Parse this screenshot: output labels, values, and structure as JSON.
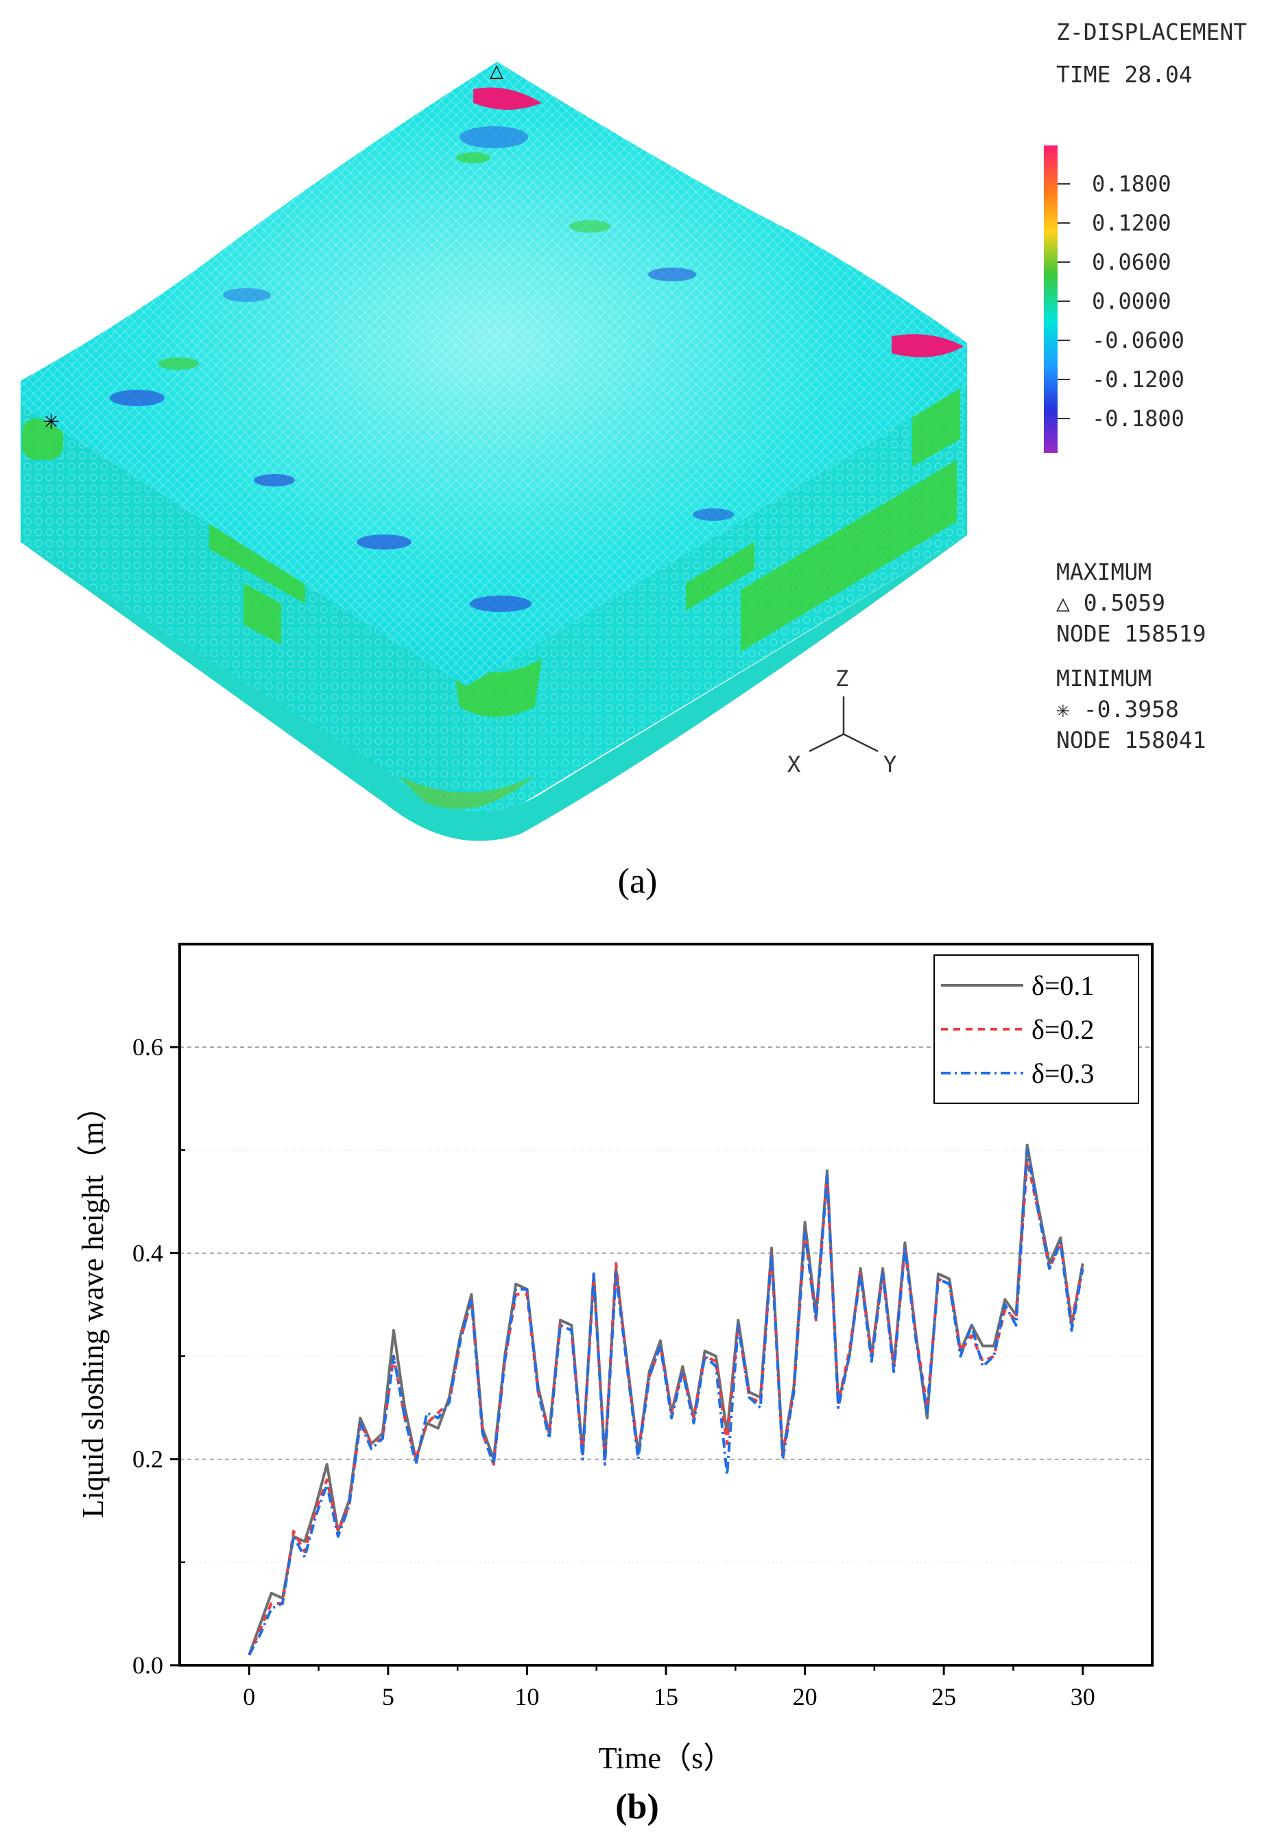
{
  "panel_a": {
    "label": "(a)",
    "title": "Z-DISPLACEMENT",
    "time_label": "TIME 28.04",
    "colorbar": {
      "ticks": [
        "0.1800",
        "0.1200",
        "0.0600",
        "0.0000",
        "-0.0600",
        "-0.1200",
        "-0.1800"
      ],
      "colors": [
        "#ff1e6e",
        "#ff7a1a",
        "#ffd21a",
        "#3cc83c",
        "#00e6dc",
        "#1e9bff",
        "#2832dc",
        "#9b28c8"
      ]
    },
    "maximum_label": "MAXIMUM",
    "maximum_value": "△ 0.5059",
    "maximum_node": "NODE 158519",
    "minimum_label": "MINIMUM",
    "minimum_value": "✳ -0.3958",
    "minimum_node": "NODE 158041",
    "axes": {
      "z": "Z",
      "x": "X",
      "y": "Y"
    },
    "colors": {
      "fluid_top": "#0ee6e6",
      "fluid_side": "#18dcd2",
      "baffle": "#3cd23c",
      "high": "#e61e78",
      "low": "#2850dc"
    }
  },
  "chart_data": {
    "type": "line",
    "label": "(b)",
    "xlabel": "Time（s）",
    "ylabel": "Liquid sloshing wave height（m）",
    "xlim": [
      -2.5,
      32.5
    ],
    "ylim": [
      0,
      0.7
    ],
    "xticks": [
      0,
      5,
      10,
      15,
      20,
      25,
      30
    ],
    "yticks": [
      0.0,
      0.2,
      0.4,
      0.6
    ],
    "ytick_labels": [
      "0.0",
      "0.2",
      "0.4",
      "0.6"
    ],
    "grid": "horizontal dashed",
    "legend_position": "top-right",
    "x": [
      0,
      0.4,
      0.8,
      1.2,
      1.6,
      2,
      2.4,
      2.8,
      3.2,
      3.6,
      4,
      4.4,
      4.8,
      5.2,
      5.6,
      6,
      6.4,
      6.8,
      7.2,
      7.6,
      8,
      8.4,
      8.8,
      9.2,
      9.6,
      10,
      10.4,
      10.8,
      11.2,
      11.6,
      12,
      12.4,
      12.8,
      13.2,
      13.6,
      14,
      14.4,
      14.8,
      15.2,
      15.6,
      16,
      16.4,
      16.8,
      17.2,
      17.6,
      18,
      18.4,
      18.8,
      19.2,
      19.6,
      20,
      20.4,
      20.8,
      21.2,
      21.6,
      22,
      22.4,
      22.8,
      23.2,
      23.6,
      24,
      24.4,
      24.8,
      25.2,
      25.6,
      26,
      26.4,
      26.8,
      27.2,
      27.6,
      28,
      28.4,
      28.8,
      29.2,
      29.6,
      30
    ],
    "series": [
      {
        "name": "δ=0.1",
        "color": "#6e6e6e",
        "dash": "solid",
        "values": [
          0.01,
          0.04,
          0.07,
          0.065,
          0.125,
          0.12,
          0.155,
          0.195,
          0.13,
          0.16,
          0.24,
          0.215,
          0.225,
          0.325,
          0.25,
          0.2,
          0.235,
          0.23,
          0.26,
          0.32,
          0.36,
          0.23,
          0.2,
          0.3,
          0.37,
          0.365,
          0.27,
          0.225,
          0.335,
          0.33,
          0.205,
          0.38,
          0.2,
          0.385,
          0.295,
          0.205,
          0.285,
          0.315,
          0.245,
          0.29,
          0.24,
          0.305,
          0.3,
          0.225,
          0.335,
          0.265,
          0.26,
          0.405,
          0.205,
          0.27,
          0.43,
          0.34,
          0.48,
          0.255,
          0.3,
          0.385,
          0.3,
          0.385,
          0.29,
          0.41,
          0.32,
          0.24,
          0.38,
          0.375,
          0.305,
          0.33,
          0.31,
          0.31,
          0.355,
          0.34,
          0.505,
          0.445,
          0.39,
          0.415,
          0.33,
          0.39
        ]
      },
      {
        "name": "δ=0.2",
        "color": "#f03c3c",
        "dash": "10,8",
        "values": [
          0.01,
          0.035,
          0.06,
          0.06,
          0.13,
          0.11,
          0.15,
          0.18,
          0.13,
          0.155,
          0.235,
          0.215,
          0.22,
          0.3,
          0.24,
          0.2,
          0.235,
          0.245,
          0.255,
          0.315,
          0.355,
          0.225,
          0.195,
          0.295,
          0.36,
          0.36,
          0.265,
          0.225,
          0.33,
          0.325,
          0.205,
          0.375,
          0.2,
          0.39,
          0.29,
          0.205,
          0.28,
          0.31,
          0.245,
          0.285,
          0.24,
          0.3,
          0.295,
          0.215,
          0.33,
          0.26,
          0.255,
          0.4,
          0.205,
          0.265,
          0.42,
          0.335,
          0.475,
          0.255,
          0.305,
          0.38,
          0.3,
          0.38,
          0.29,
          0.405,
          0.32,
          0.25,
          0.375,
          0.37,
          0.305,
          0.32,
          0.295,
          0.3,
          0.345,
          0.335,
          0.49,
          0.44,
          0.385,
          0.41,
          0.335,
          0.385
        ]
      },
      {
        "name": "δ=0.3",
        "color": "#1e6ee6",
        "dash": "14,6,3,6",
        "values": [
          0.01,
          0.03,
          0.055,
          0.06,
          0.125,
          0.105,
          0.145,
          0.175,
          0.125,
          0.155,
          0.235,
          0.21,
          0.22,
          0.3,
          0.24,
          0.195,
          0.245,
          0.24,
          0.255,
          0.315,
          0.355,
          0.225,
          0.195,
          0.295,
          0.365,
          0.365,
          0.265,
          0.22,
          0.33,
          0.325,
          0.2,
          0.38,
          0.195,
          0.38,
          0.29,
          0.2,
          0.28,
          0.31,
          0.24,
          0.285,
          0.235,
          0.3,
          0.29,
          0.185,
          0.33,
          0.26,
          0.25,
          0.4,
          0.2,
          0.265,
          0.42,
          0.335,
          0.475,
          0.25,
          0.3,
          0.38,
          0.295,
          0.38,
          0.285,
          0.405,
          0.315,
          0.245,
          0.375,
          0.37,
          0.3,
          0.33,
          0.29,
          0.3,
          0.35,
          0.33,
          0.5,
          0.44,
          0.385,
          0.41,
          0.325,
          0.385
        ]
      }
    ]
  }
}
